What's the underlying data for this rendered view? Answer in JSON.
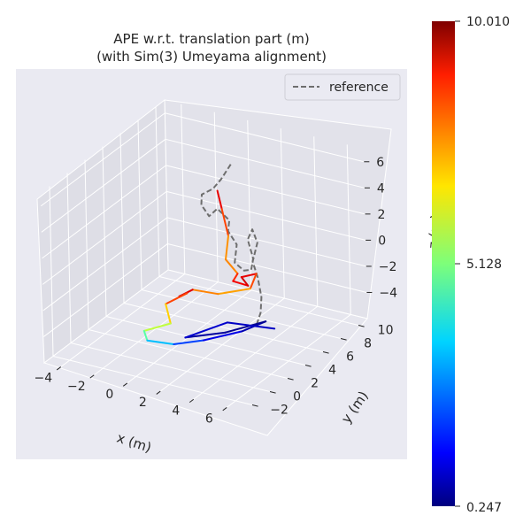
{
  "chart_data": {
    "type": "line",
    "projection": "3d",
    "title": "APE w.r.t. translation part (m)",
    "subtitle": "(with Sim(3) Umeyama alignment)",
    "xlabel": "x (m)",
    "ylabel": "y (m)",
    "zlabel": "z (m)",
    "xlim": [
      -5,
      7
    ],
    "ylim": [
      -3,
      11
    ],
    "zlim": [
      -6,
      7
    ],
    "x_ticks": [
      "−4",
      "−2",
      "0",
      "2",
      "4",
      "6"
    ],
    "y_ticks": [
      "−2",
      "0",
      "2",
      "4",
      "6",
      "8",
      "10"
    ],
    "z_ticks": [
      "6",
      "4",
      "2",
      "0",
      "−2",
      "−4"
    ],
    "grid": true,
    "legend": {
      "position": "top-right",
      "entries": [
        "reference"
      ]
    },
    "colorbar": {
      "colormap": "jet",
      "min_label": "0.247",
      "mid_label": "5.128",
      "max_label": "10.010",
      "min": 0.247,
      "mid": 5.128,
      "max": 10.01
    },
    "series": [
      {
        "name": "reference",
        "style": "dashed",
        "color": "#6e6e6e",
        "points": [
          [
            1.1,
            7.0,
            6.0
          ],
          [
            0.6,
            6.8,
            4.8
          ],
          [
            0.0,
            7.0,
            3.8
          ],
          [
            -0.8,
            7.2,
            3.0
          ],
          [
            -1.0,
            7.5,
            2.0
          ],
          [
            -0.6,
            7.6,
            1.2
          ],
          [
            -0.2,
            7.8,
            1.8
          ],
          [
            0.4,
            8.0,
            1.0
          ],
          [
            0.2,
            8.2,
            0.0
          ],
          [
            0.6,
            8.4,
            -1.0
          ],
          [
            0.4,
            8.5,
            -2.5
          ],
          [
            0.9,
            8.6,
            -3.0
          ],
          [
            1.5,
            8.3,
            -2.6
          ],
          [
            1.8,
            8.0,
            -1.5
          ],
          [
            1.6,
            7.8,
            0.0
          ],
          [
            2.0,
            7.6,
            1.0
          ],
          [
            2.4,
            7.4,
            0.2
          ],
          [
            2.2,
            7.2,
            -1.2
          ],
          [
            2.6,
            7.0,
            -2.2
          ],
          [
            2.9,
            6.8,
            -3.5
          ],
          [
            3.0,
            6.5,
            -4.5
          ],
          [
            3.0,
            6.0,
            -5.2
          ]
        ]
      },
      {
        "name": "",
        "colored_by": "ape",
        "points": [
          [
            0.8,
            6.0,
            4.4,
            9.5
          ],
          [
            1.0,
            6.1,
            3.0,
            8.5
          ],
          [
            1.3,
            6.2,
            1.0,
            7.8
          ],
          [
            1.0,
            6.4,
            -1.0,
            7.0
          ],
          [
            1.6,
            6.6,
            -2.0,
            8.0
          ],
          [
            1.2,
            6.8,
            -2.8,
            8.8
          ],
          [
            2.0,
            7.0,
            -3.0,
            9.0
          ],
          [
            1.5,
            7.2,
            -2.6,
            9.4
          ],
          [
            2.3,
            7.4,
            -2.2,
            8.6
          ],
          [
            1.8,
            7.6,
            -3.6,
            7.6
          ],
          [
            0.5,
            6.4,
            -3.8,
            6.9
          ],
          [
            -0.6,
            5.6,
            -3.4,
            8.2
          ],
          [
            -1.2,
            5.2,
            -3.9,
            10.0
          ],
          [
            -0.4,
            4.6,
            -3.1,
            8.7
          ],
          [
            -1.6,
            4.4,
            -4.2,
            7.6
          ],
          [
            -1.0,
            3.8,
            -5.2,
            6.0
          ],
          [
            -2.4,
            3.4,
            -6.0,
            5.5
          ],
          [
            -2.0,
            3.0,
            -6.4,
            4.0
          ],
          [
            -0.4,
            3.0,
            -6.2,
            2.6
          ],
          [
            1.2,
            3.4,
            -5.6,
            1.6
          ],
          [
            3.2,
            4.0,
            -4.6,
            0.9
          ],
          [
            4.0,
            5.2,
            -4.2,
            0.5
          ],
          [
            2.2,
            4.0,
            -5.0,
            0.3
          ],
          [
            0.2,
            3.2,
            -5.6,
            0.8
          ],
          [
            2.0,
            4.6,
            -4.6,
            1.2
          ],
          [
            4.2,
            5.8,
            -5.0,
            0.6
          ]
        ]
      }
    ]
  }
}
